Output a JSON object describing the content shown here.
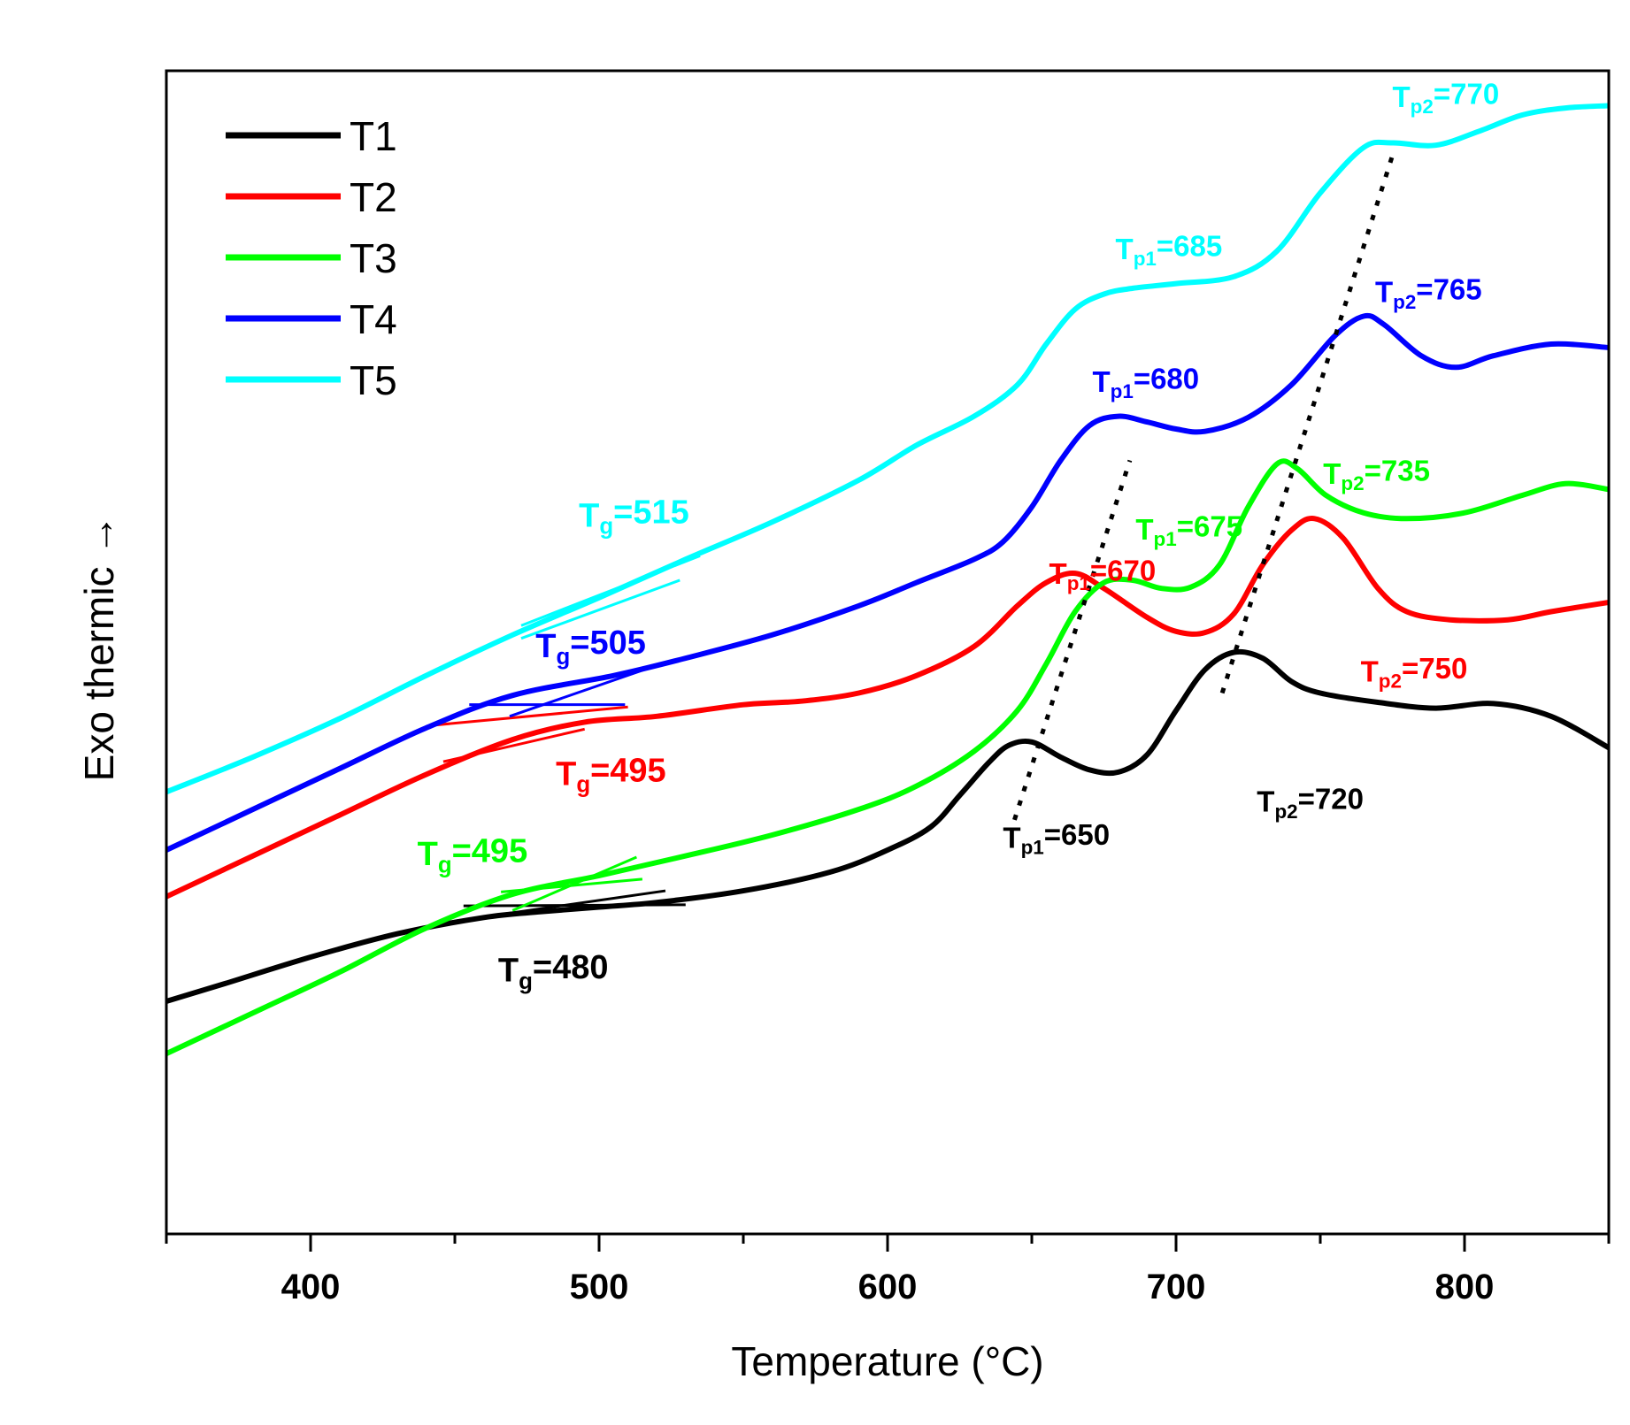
{
  "chart_data": {
    "type": "line",
    "xlabel": "Temperature (°C)",
    "ylabel": "Exo thermic →",
    "xlim": [
      350,
      850
    ],
    "ylim": [
      0,
      100
    ],
    "x_ticks_major": [
      400,
      500,
      600,
      700,
      800
    ],
    "x_ticks_labels": [
      "400",
      "500",
      "600",
      "700",
      "800"
    ],
    "x_ticks_minor": [
      350,
      450,
      550,
      650,
      750,
      850
    ],
    "y_ticks_shown": false,
    "grid": false,
    "legend_position": "top-left",
    "series": [
      {
        "name": "T1",
        "color": "#000000",
        "points": [
          [
            350,
            20
          ],
          [
            370,
            21.5
          ],
          [
            400,
            23.8
          ],
          [
            430,
            25.8
          ],
          [
            460,
            27.2
          ],
          [
            480,
            27.7
          ],
          [
            500,
            28.1
          ],
          [
            520,
            28.5
          ],
          [
            550,
            29.5
          ],
          [
            580,
            31.1
          ],
          [
            600,
            33
          ],
          [
            615,
            35
          ],
          [
            625,
            37.7
          ],
          [
            635,
            40.5
          ],
          [
            642,
            42
          ],
          [
            650,
            42.3
          ],
          [
            660,
            41
          ],
          [
            670,
            39.9
          ],
          [
            680,
            39.7
          ],
          [
            690,
            41.2
          ],
          [
            700,
            45
          ],
          [
            710,
            48.5
          ],
          [
            720,
            50
          ],
          [
            730,
            49.5
          ],
          [
            740,
            47.5
          ],
          [
            750,
            46.5
          ],
          [
            770,
            45.7
          ],
          [
            790,
            45.2
          ],
          [
            810,
            45.6
          ],
          [
            830,
            44.5
          ],
          [
            850,
            41.8
          ]
        ]
      },
      {
        "name": "T2",
        "color": "#ff0000",
        "points": [
          [
            350,
            29
          ],
          [
            380,
            32.5
          ],
          [
            410,
            36
          ],
          [
            440,
            39.5
          ],
          [
            470,
            42.5
          ],
          [
            495,
            44
          ],
          [
            520,
            44.5
          ],
          [
            550,
            45.5
          ],
          [
            570,
            45.8
          ],
          [
            590,
            46.5
          ],
          [
            610,
            48
          ],
          [
            630,
            50.5
          ],
          [
            645,
            54
          ],
          [
            655,
            56
          ],
          [
            665,
            56.8
          ],
          [
            675,
            55.5
          ],
          [
            690,
            53
          ],
          [
            700,
            51.8
          ],
          [
            710,
            51.7
          ],
          [
            720,
            53.3
          ],
          [
            730,
            57.5
          ],
          [
            740,
            60.5
          ],
          [
            748,
            61.5
          ],
          [
            758,
            59.8
          ],
          [
            770,
            55.5
          ],
          [
            780,
            53.5
          ],
          [
            795,
            52.8
          ],
          [
            815,
            52.8
          ],
          [
            830,
            53.5
          ],
          [
            850,
            54.3
          ]
        ]
      },
      {
        "name": "T3",
        "color": "#00ff00",
        "points": [
          [
            350,
            15.5
          ],
          [
            380,
            19
          ],
          [
            410,
            22.5
          ],
          [
            440,
            26.3
          ],
          [
            470,
            29.2
          ],
          [
            500,
            30.8
          ],
          [
            530,
            32.5
          ],
          [
            560,
            34.3
          ],
          [
            590,
            36.5
          ],
          [
            610,
            38.5
          ],
          [
            630,
            41.5
          ],
          [
            645,
            45
          ],
          [
            655,
            49
          ],
          [
            665,
            53.5
          ],
          [
            675,
            56
          ],
          [
            685,
            56.2
          ],
          [
            695,
            55.5
          ],
          [
            705,
            55.6
          ],
          [
            715,
            57.5
          ],
          [
            725,
            62.5
          ],
          [
            735,
            66.2
          ],
          [
            742,
            65.8
          ],
          [
            752,
            63.5
          ],
          [
            765,
            62
          ],
          [
            780,
            61.5
          ],
          [
            800,
            62
          ],
          [
            820,
            63.5
          ],
          [
            835,
            64.5
          ],
          [
            850,
            64
          ]
        ]
      },
      {
        "name": "T4",
        "color": "#0000ff",
        "points": [
          [
            350,
            33
          ],
          [
            380,
            36.5
          ],
          [
            410,
            40
          ],
          [
            440,
            43.5
          ],
          [
            470,
            46.3
          ],
          [
            505,
            48
          ],
          [
            530,
            49.5
          ],
          [
            560,
            51.5
          ],
          [
            590,
            54
          ],
          [
            610,
            56
          ],
          [
            630,
            58
          ],
          [
            640,
            59.5
          ],
          [
            650,
            62.5
          ],
          [
            660,
            66.5
          ],
          [
            670,
            69.5
          ],
          [
            680,
            70.3
          ],
          [
            690,
            69.8
          ],
          [
            700,
            69.2
          ],
          [
            710,
            69
          ],
          [
            725,
            70.2
          ],
          [
            740,
            73
          ],
          [
            755,
            77.2
          ],
          [
            765,
            78.9
          ],
          [
            772,
            78.2
          ],
          [
            785,
            75.5
          ],
          [
            797,
            74.5
          ],
          [
            810,
            75.5
          ],
          [
            830,
            76.5
          ],
          [
            850,
            76.2
          ]
        ]
      },
      {
        "name": "T5",
        "color": "#00ffff",
        "points": [
          [
            350,
            38
          ],
          [
            380,
            41
          ],
          [
            410,
            44.3
          ],
          [
            440,
            48
          ],
          [
            470,
            51.5
          ],
          [
            500,
            54.7
          ],
          [
            530,
            58
          ],
          [
            560,
            61.2
          ],
          [
            590,
            64.8
          ],
          [
            610,
            67.8
          ],
          [
            630,
            70.3
          ],
          [
            645,
            73
          ],
          [
            655,
            76.5
          ],
          [
            665,
            79.5
          ],
          [
            675,
            80.8
          ],
          [
            685,
            81.3
          ],
          [
            700,
            81.7
          ],
          [
            720,
            82.3
          ],
          [
            735,
            84.5
          ],
          [
            750,
            89.5
          ],
          [
            765,
            93.4
          ],
          [
            775,
            93.8
          ],
          [
            790,
            93.6
          ],
          [
            805,
            94.8
          ],
          [
            820,
            96.2
          ],
          [
            835,
            96.8
          ],
          [
            850,
            97
          ]
        ]
      }
    ],
    "tangent_lines": [
      {
        "series": "T1",
        "color": "#000000",
        "segments": [
          [
            [
              453,
              28.2
            ],
            [
              530,
              28.3
            ]
          ],
          [
            [
              450,
              26.9
            ],
            [
              523,
              29.5
            ]
          ]
        ]
      },
      {
        "series": "T2",
        "color": "#ff0000",
        "segments": [
          [
            [
              441,
              43.7
            ],
            [
              510,
              45.3
            ]
          ],
          [
            [
              446,
              40.6
            ],
            [
              495,
              43.4
            ]
          ]
        ]
      },
      {
        "series": "T3",
        "color": "#00ff00",
        "segments": [
          [
            [
              466,
              29.4
            ],
            [
              515,
              30.5
            ]
          ],
          [
            [
              470,
              27.8
            ],
            [
              513,
              32.4
            ]
          ]
        ]
      },
      {
        "series": "T4",
        "color": "#0000ff",
        "segments": [
          [
            [
              455,
              45.5
            ],
            [
              509,
              45.5
            ]
          ],
          [
            [
              469,
              44.5
            ],
            [
              519,
              48.8
            ]
          ]
        ]
      },
      {
        "series": "T5",
        "color": "#00ffff",
        "segments": [
          [
            [
              473,
              52.3
            ],
            [
              535,
              58.3
            ]
          ],
          [
            [
              473,
              51.2
            ],
            [
              528,
              56.2
            ]
          ]
        ]
      }
    ],
    "peak_guides": [
      {
        "color": "#000000",
        "from": [
          644,
          35.6
        ],
        "to": [
          684,
          66.5
        ]
      },
      {
        "color": "#000000",
        "from": [
          716,
          46.5
        ],
        "to": [
          775,
          92.7
        ]
      }
    ],
    "annotations": [
      {
        "series": "T1",
        "kind": "Tg",
        "base": "T",
        "sub": "g",
        "value": "=480",
        "color": "#000000",
        "x": 465,
        "y": 21.7,
        "size": "big"
      },
      {
        "series": "T2",
        "kind": "Tg",
        "base": "T",
        "sub": "g",
        "value": "=495",
        "color": "#ff0000",
        "x": 485,
        "y": 38.6,
        "size": "big"
      },
      {
        "series": "T3",
        "kind": "Tg",
        "base": "T",
        "sub": "g",
        "value": "=495",
        "color": "#00ff00",
        "x": 437,
        "y": 31.7,
        "size": "big"
      },
      {
        "series": "T4",
        "kind": "Tg",
        "base": "T",
        "sub": "g",
        "value": "=505",
        "color": "#0000ff",
        "x": 478,
        "y": 49.6,
        "size": "big"
      },
      {
        "series": "T5",
        "kind": "Tg",
        "base": "T",
        "sub": "g",
        "value": "=515",
        "color": "#00ffff",
        "x": 493,
        "y": 60.8,
        "size": "big"
      },
      {
        "series": "T1",
        "kind": "Tp1",
        "base": "T",
        "sub": "p1",
        "value": "=650",
        "color": "#000000",
        "x": 640,
        "y": 33.2,
        "size": "small"
      },
      {
        "series": "T1",
        "kind": "Tp2",
        "base": "T",
        "sub": "p2",
        "value": "=720",
        "color": "#000000",
        "x": 728,
        "y": 36.3,
        "size": "small"
      },
      {
        "series": "T2",
        "kind": "Tp1",
        "base": "T",
        "sub": "p1",
        "value": "=670",
        "color": "#ff0000",
        "x": 656,
        "y": 55.9,
        "size": "small"
      },
      {
        "series": "T2",
        "kind": "Tp2",
        "base": "T",
        "sub": "p2",
        "value": "=750",
        "color": "#ff0000",
        "x": 764,
        "y": 47.5,
        "size": "small"
      },
      {
        "series": "T3",
        "kind": "Tp1",
        "base": "T",
        "sub": "p1",
        "value": "=675",
        "color": "#00ff00",
        "x": 686,
        "y": 59.7,
        "size": "small"
      },
      {
        "series": "T3",
        "kind": "Tp2",
        "base": "T",
        "sub": "p2",
        "value": "=735",
        "color": "#00ff00",
        "x": 751,
        "y": 64.5,
        "size": "small"
      },
      {
        "series": "T4",
        "kind": "Tp1",
        "base": "T",
        "sub": "p1",
        "value": "=680",
        "color": "#0000ff",
        "x": 671,
        "y": 72.4,
        "size": "small"
      },
      {
        "series": "T4",
        "kind": "Tp2",
        "base": "T",
        "sub": "p2",
        "value": "=765",
        "color": "#0000ff",
        "x": 769,
        "y": 80.1,
        "size": "small"
      },
      {
        "series": "T5",
        "kind": "Tp1",
        "base": "T",
        "sub": "p1",
        "value": "=685",
        "color": "#00ffff",
        "x": 679,
        "y": 83.8,
        "size": "small"
      },
      {
        "series": "T5",
        "kind": "Tp2",
        "base": "T",
        "sub": "p2",
        "value": "=770",
        "color": "#00ffff",
        "x": 775,
        "y": 96.9,
        "size": "small"
      }
    ]
  }
}
